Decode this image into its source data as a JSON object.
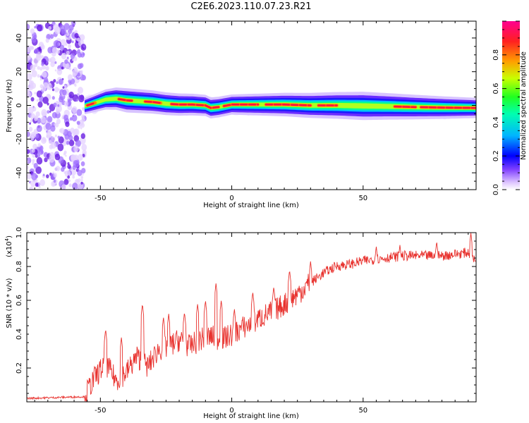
{
  "title": "C2E6.2023.110.07.23.R21",
  "chart_data": [
    {
      "type": "heatmap",
      "xlabel": "Height of straight line (km)",
      "ylabel": "Frequency (Hz)",
      "xlim": [
        -78,
        93
      ],
      "ylim": [
        -50,
        50
      ],
      "xticks": [
        -50,
        0,
        50
      ],
      "yticks": [
        -40,
        -20,
        0,
        20,
        40
      ],
      "colorbar": {
        "label": "Normalized spectral amplitude",
        "range": [
          0.0,
          1.0
        ],
        "ticks": [
          "0.0",
          "0.2",
          "0.4",
          "0.6",
          "0.8"
        ],
        "colors": [
          "#ffffff",
          "#c8a0ff",
          "#6020ff",
          "#0000ff",
          "#00c8ff",
          "#00ff60",
          "#ffff00",
          "#ff6000",
          "#ff0060"
        ]
      },
      "noise_region_x": [
        -78,
        -56
      ],
      "ridge": [
        [
          -56,
          -0.5
        ],
        [
          -52,
          1.5
        ],
        [
          -48,
          3.5
        ],
        [
          -44,
          4
        ],
        [
          -40,
          3
        ],
        [
          -35,
          2.5
        ],
        [
          -30,
          2
        ],
        [
          -25,
          1
        ],
        [
          -20,
          0.5
        ],
        [
          -15,
          0.5
        ],
        [
          -10,
          0
        ],
        [
          -8,
          -1.5
        ],
        [
          -5,
          -1
        ],
        [
          0,
          0.5
        ],
        [
          10,
          0.5
        ],
        [
          20,
          0.5
        ],
        [
          30,
          0
        ],
        [
          40,
          0
        ],
        [
          50,
          -0.3
        ],
        [
          60,
          -0.6
        ],
        [
          70,
          -1
        ],
        [
          80,
          -1.3
        ],
        [
          93,
          -1.5
        ]
      ],
      "ridge_band_halfwidth_hz": [
        [
          -56,
          2
        ],
        [
          -40,
          3
        ],
        [
          0,
          2.5
        ],
        [
          50,
          3.5
        ],
        [
          93,
          2.5
        ]
      ]
    },
    {
      "type": "line",
      "xlabel": "Height of straight line (km)",
      "ylabel": "SNR (10 * v/v)",
      "yscale_label": "(x10",
      "yscale_exponent": "4",
      "xlim": [
        -78,
        93
      ],
      "ylim": [
        0.0,
        1.0
      ],
      "xticks": [
        -50,
        0,
        50
      ],
      "yticks": [
        "0.2",
        "0.4",
        "0.6",
        "0.8",
        "1.0"
      ],
      "color": "#e8322e",
      "envelope": {
        "x": [
          -78,
          -56,
          -52,
          -48,
          -44,
          -40,
          -36,
          -32,
          -28,
          -24,
          -20,
          -16,
          -12,
          -8,
          -4,
          0,
          4,
          8,
          12,
          16,
          20,
          25,
          30,
          35,
          40,
          45,
          50,
          55,
          60,
          65,
          70,
          75,
          80,
          85,
          90,
          93
        ],
        "y": [
          0.02,
          0.03,
          0.14,
          0.22,
          0.12,
          0.17,
          0.26,
          0.2,
          0.3,
          0.32,
          0.36,
          0.32,
          0.36,
          0.38,
          0.36,
          0.39,
          0.43,
          0.46,
          0.5,
          0.53,
          0.57,
          0.63,
          0.7,
          0.76,
          0.8,
          0.81,
          0.83,
          0.84,
          0.85,
          0.86,
          0.86,
          0.86,
          0.86,
          0.87,
          0.88,
          0.82
        ]
      },
      "spikes": [
        [
          -48,
          0.43
        ],
        [
          -42,
          0.38
        ],
        [
          -34,
          0.58
        ],
        [
          -26,
          0.5
        ],
        [
          -24,
          0.52
        ],
        [
          -18,
          0.53
        ],
        [
          -13,
          0.58
        ],
        [
          -10,
          0.6
        ],
        [
          -6,
          0.7
        ],
        [
          -4,
          0.6
        ],
        [
          1,
          0.55
        ],
        [
          8,
          0.65
        ],
        [
          16,
          0.68
        ],
        [
          22,
          0.78
        ],
        [
          30,
          0.83
        ],
        [
          55,
          0.92
        ],
        [
          64,
          0.93
        ],
        [
          78,
          0.95
        ],
        [
          91,
          1.0
        ]
      ]
    }
  ]
}
